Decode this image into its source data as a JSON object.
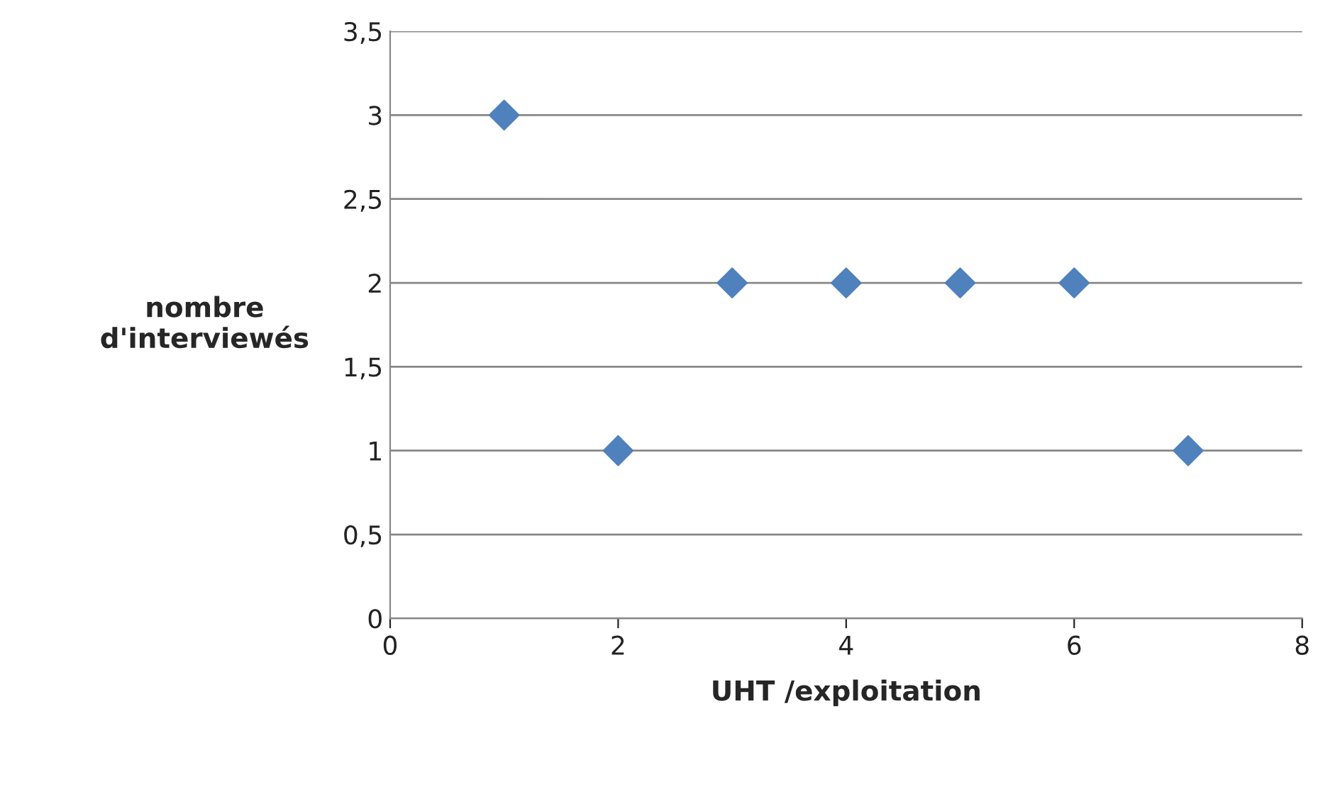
{
  "chart_data": {
    "type": "scatter",
    "xlabel": "UHT /exploitation",
    "ylabel": "nombre\nd'interviewés",
    "x": [
      1,
      2,
      3,
      4,
      5,
      6,
      7
    ],
    "series": [
      {
        "color": "#4f81bd",
        "values": [
          3,
          1,
          2,
          2,
          2,
          2,
          1
        ]
      }
    ],
    "xlim": [
      0,
      8
    ],
    "xticks": [
      0,
      2,
      4,
      6,
      8
    ],
    "ylim": [
      0,
      3.5
    ],
    "yticks": [
      0,
      {
        "value": 0.5,
        "label": "0,5"
      },
      1,
      {
        "value": 1.5,
        "label": "1,5"
      },
      2,
      {
        "value": 2.5,
        "label": "2,5"
      },
      3,
      {
        "value": 3.5,
        "label": "3,5"
      }
    ],
    "grid": "y",
    "marker": "diamond"
  }
}
